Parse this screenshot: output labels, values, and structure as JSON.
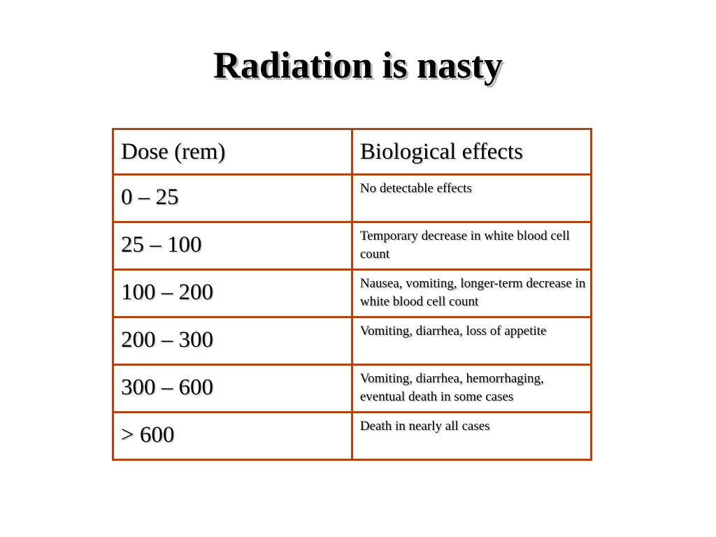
{
  "title": "Radiation is nasty",
  "table": {
    "header": [
      "Dose (rem)",
      "Biological effects"
    ],
    "rows": [
      [
        "0 – 25",
        "No detectable effects"
      ],
      [
        "25 – 100",
        "Temporary decrease in white blood cell count"
      ],
      [
        "100 – 200",
        "Nausea, vomiting, longer-term decrease in white blood cell count"
      ],
      [
        "200 – 300",
        "Vomiting, diarrhea, loss of appetite"
      ],
      [
        "300 – 600",
        "Vomiting, diarrhea, hemorrhaging, eventual death in some cases"
      ],
      [
        "> 600",
        "Death in nearly all cases"
      ]
    ]
  }
}
